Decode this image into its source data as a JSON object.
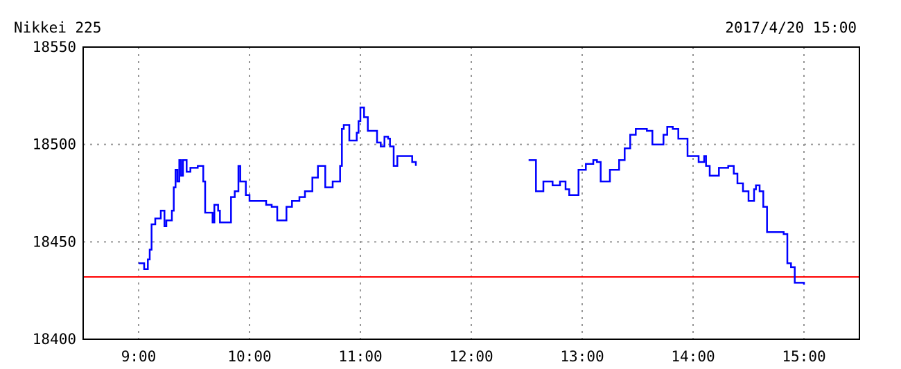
{
  "chart_data": {
    "type": "line",
    "title": "Nikkei 225",
    "timestamp": "2017/4/20 15:00",
    "xlabel": "",
    "ylabel": "",
    "xlim": [
      "8:30",
      "15:30"
    ],
    "ylim": [
      18400,
      18550
    ],
    "x_ticks": [
      "9:00",
      "10:00",
      "11:00",
      "12:00",
      "13:00",
      "14:00",
      "15:00"
    ],
    "y_ticks": [
      18400,
      18450,
      18500,
      18550
    ],
    "grid": true,
    "step": true,
    "colors": {
      "series": "#0000ff",
      "reference": "#ff0000",
      "grid": "#999999"
    },
    "reference_line": {
      "value": 18432
    },
    "series": [
      {
        "session": "morning",
        "points": [
          [
            "9:00",
            18439
          ],
          [
            "9:03",
            18436
          ],
          [
            "9:05",
            18441
          ],
          [
            "9:06",
            18446
          ],
          [
            "9:07",
            18459
          ],
          [
            "9:09",
            18462
          ],
          [
            "9:12",
            18466
          ],
          [
            "9:14",
            18458
          ],
          [
            "9:15",
            18461
          ],
          [
            "9:18",
            18466
          ],
          [
            "9:19",
            18478
          ],
          [
            "9:20",
            18487
          ],
          [
            "9:21",
            18481
          ],
          [
            "9:22",
            18492
          ],
          [
            "9:23",
            18484
          ],
          [
            "9:24",
            18492
          ],
          [
            "9:26",
            18486
          ],
          [
            "9:28",
            18488
          ],
          [
            "9:32",
            18489
          ],
          [
            "9:35",
            18481
          ],
          [
            "9:36",
            18465
          ],
          [
            "9:40",
            18460
          ],
          [
            "9:41",
            18469
          ],
          [
            "9:43",
            18466
          ],
          [
            "9:44",
            18460
          ],
          [
            "9:49",
            18460
          ],
          [
            "9:50",
            18473
          ],
          [
            "9:52",
            18476
          ],
          [
            "9:54",
            18489
          ],
          [
            "9:55",
            18481
          ],
          [
            "9:58",
            18474
          ],
          [
            "10:00",
            18471
          ],
          [
            "10:09",
            18469
          ],
          [
            "10:12",
            18468
          ],
          [
            "10:15",
            18461
          ],
          [
            "10:20",
            18468
          ],
          [
            "10:23",
            18471
          ],
          [
            "10:27",
            18473
          ],
          [
            "10:30",
            18476
          ],
          [
            "10:34",
            18483
          ],
          [
            "10:37",
            18489
          ],
          [
            "10:39",
            18489
          ],
          [
            "10:41",
            18478
          ],
          [
            "10:45",
            18481
          ],
          [
            "10:49",
            18489
          ],
          [
            "10:50",
            18508
          ],
          [
            "10:51",
            18510
          ],
          [
            "10:54",
            18502
          ],
          [
            "10:58",
            18506
          ],
          [
            "10:59",
            18512
          ],
          [
            "11:00",
            18519
          ],
          [
            "11:02",
            18514
          ],
          [
            "11:04",
            18507
          ],
          [
            "11:09",
            18501
          ],
          [
            "11:11",
            18499
          ],
          [
            "11:13",
            18504
          ],
          [
            "11:15",
            18503
          ],
          [
            "11:16",
            18499
          ],
          [
            "11:18",
            18489
          ],
          [
            "11:20",
            18494
          ],
          [
            "11:28",
            18491
          ],
          [
            "11:30",
            18489
          ]
        ]
      },
      {
        "session": "afternoon",
        "points": [
          [
            "12:31",
            18492
          ],
          [
            "12:33",
            18492
          ],
          [
            "12:35",
            18476
          ],
          [
            "12:39",
            18481
          ],
          [
            "12:44",
            18479
          ],
          [
            "12:48",
            18481
          ],
          [
            "12:51",
            18477
          ],
          [
            "12:53",
            18474
          ],
          [
            "12:57",
            18474
          ],
          [
            "12:58",
            18487
          ],
          [
            "13:02",
            18490
          ],
          [
            "13:06",
            18492
          ],
          [
            "13:08",
            18491
          ],
          [
            "13:10",
            18481
          ],
          [
            "13:15",
            18487
          ],
          [
            "13:20",
            18492
          ],
          [
            "13:23",
            18498
          ],
          [
            "13:26",
            18505
          ],
          [
            "13:29",
            18508
          ],
          [
            "13:35",
            18507
          ],
          [
            "13:38",
            18500
          ],
          [
            "13:42",
            18500
          ],
          [
            "13:44",
            18505
          ],
          [
            "13:46",
            18509
          ],
          [
            "13:49",
            18508
          ],
          [
            "13:52",
            18503
          ],
          [
            "13:57",
            18494
          ],
          [
            "14:03",
            18491
          ],
          [
            "14:06",
            18494
          ],
          [
            "14:07",
            18489
          ],
          [
            "14:09",
            18484
          ],
          [
            "14:14",
            18488
          ],
          [
            "14:19",
            18489
          ],
          [
            "14:22",
            18485
          ],
          [
            "14:24",
            18480
          ],
          [
            "14:27",
            18476
          ],
          [
            "14:30",
            18471
          ],
          [
            "14:33",
            18477
          ],
          [
            "14:34",
            18479
          ],
          [
            "14:36",
            18476
          ],
          [
            "14:38",
            18468
          ],
          [
            "14:40",
            18455
          ],
          [
            "14:49",
            18454
          ],
          [
            "14:51",
            18439
          ],
          [
            "14:53",
            18437
          ],
          [
            "14:55",
            18429
          ],
          [
            "15:00",
            18428
          ]
        ]
      }
    ]
  }
}
